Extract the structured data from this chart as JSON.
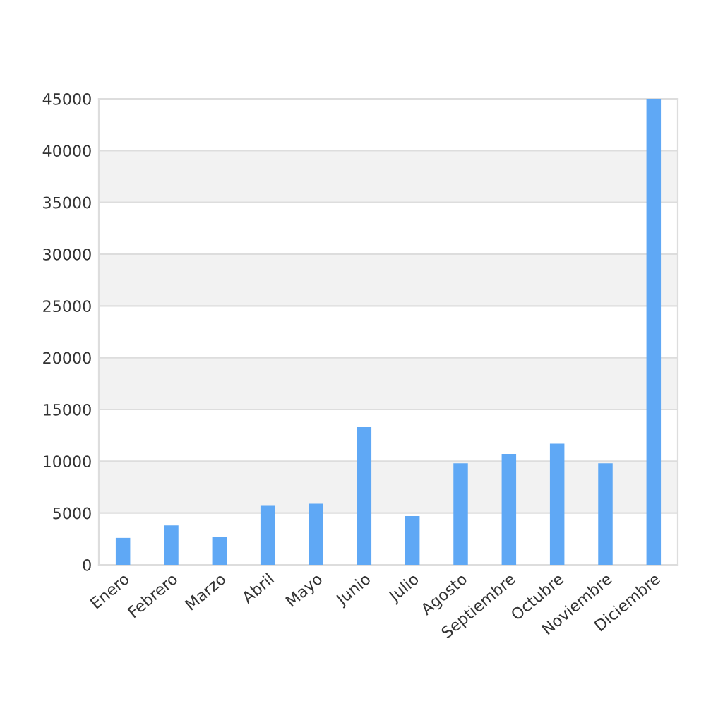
{
  "chart_data": {
    "type": "bar",
    "categories": [
      "Enero",
      "Febrero",
      "Marzo",
      "Abril",
      "Mayo",
      "Junio",
      "Julio",
      "Agosto",
      "Septiembre",
      "Octubre",
      "Noviembre",
      "Diciembre"
    ],
    "values": [
      2600,
      3800,
      2700,
      5700,
      5900,
      13300,
      4700,
      9800,
      10700,
      11700,
      9800,
      45000
    ],
    "color": "#5fa8f5",
    "ylim": [
      0,
      45000
    ],
    "yticks": [
      0,
      5000,
      10000,
      15000,
      20000,
      25000,
      30000,
      35000,
      40000,
      45000
    ],
    "grid": "y",
    "bands": [
      {
        "axis": "y",
        "from": 5000,
        "to": 10000,
        "color": "#f2f2f2"
      },
      {
        "axis": "y",
        "from": 15000,
        "to": 20000,
        "color": "#f2f2f2"
      },
      {
        "axis": "y",
        "from": 25000,
        "to": 30000,
        "color": "#f2f2f2"
      },
      {
        "axis": "y",
        "from": 35000,
        "to": 40000,
        "color": "#f2f2f2"
      }
    ]
  }
}
